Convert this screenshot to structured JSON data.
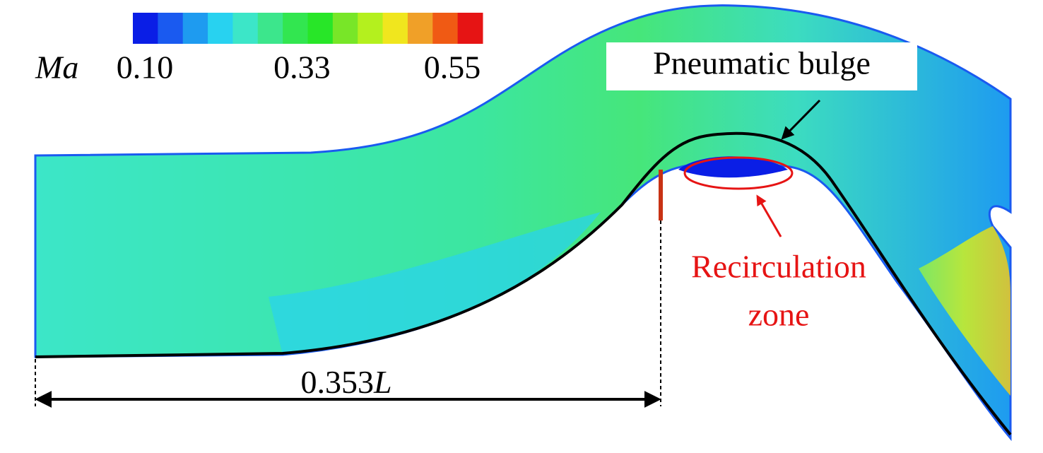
{
  "colorbar": {
    "label": "Ma",
    "ticks": [
      {
        "value": 0.1,
        "label": "0.10"
      },
      {
        "value": 0.33,
        "label": "0.33"
      },
      {
        "value": 0.55,
        "label": "0.55"
      }
    ],
    "colors": [
      "#0a1ee6",
      "#1a5af0",
      "#1e9bf0",
      "#28d2f0",
      "#3ce6c8",
      "#3ce68c",
      "#32e650",
      "#28e628",
      "#78e628",
      "#b4f01e",
      "#f0e61e",
      "#f0a028",
      "#f05a14",
      "#e61414"
    ]
  },
  "annotations": {
    "bulge": "Pneumatic bulge",
    "recirculation": [
      "Recirculation",
      "zone"
    ],
    "dimension": {
      "number": "0.353",
      "unit": "L"
    }
  }
}
